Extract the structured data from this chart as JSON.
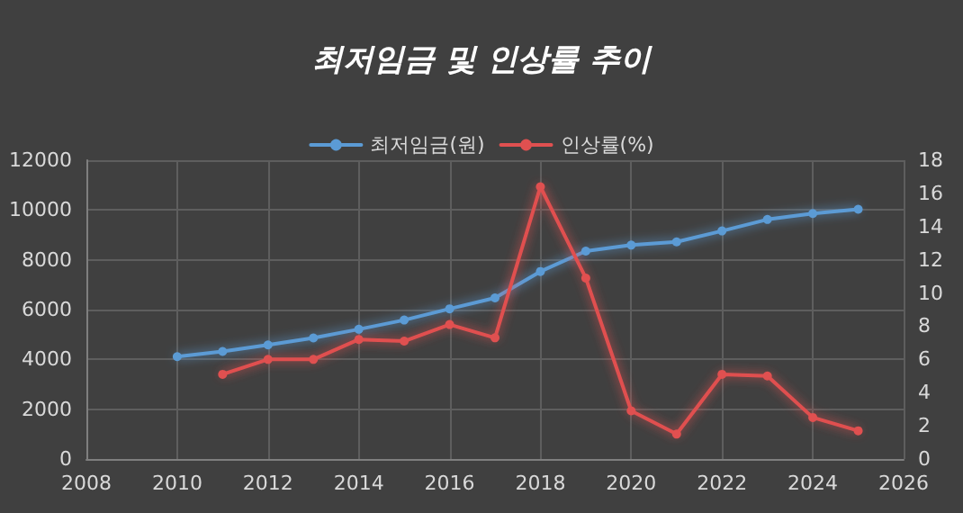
{
  "chart_data": {
    "type": "line",
    "title": "최저임금 및 인상률 추이",
    "x": [
      2010,
      2011,
      2012,
      2013,
      2014,
      2015,
      2016,
      2017,
      2018,
      2019,
      2020,
      2021,
      2022,
      2023,
      2024,
      2025
    ],
    "series": [
      {
        "name": "최저임금(원)",
        "color": "#5b9bd5",
        "values": [
          4110,
          4320,
          4580,
          4860,
          5210,
          5580,
          6030,
          6470,
          7530,
          8350,
          8590,
          8720,
          9160,
          9620,
          9860,
          10030
        ]
      },
      {
        "name": "인상률(%)",
        "color": "#e05050",
        "axis": "y2",
        "values": [
          null,
          5.1,
          6.0,
          6.0,
          7.2,
          7.1,
          8.1,
          7.3,
          16.4,
          10.9,
          2.9,
          1.5,
          5.1,
          5.0,
          2.5,
          1.7
        ]
      }
    ],
    "xlim": [
      2008,
      2026
    ],
    "xticks": [
      2008,
      2010,
      2012,
      2014,
      2016,
      2018,
      2020,
      2022,
      2024,
      2026
    ],
    "ylim": [
      0,
      12000
    ],
    "yticks": [
      0,
      2000,
      4000,
      6000,
      8000,
      10000,
      12000
    ],
    "y2lim": [
      0,
      18
    ],
    "y2ticks": [
      0,
      2,
      4,
      6,
      8,
      10,
      12,
      14,
      16,
      18
    ],
    "grid": true,
    "legend": "top",
    "marker": "circle",
    "line_style": "solid"
  }
}
